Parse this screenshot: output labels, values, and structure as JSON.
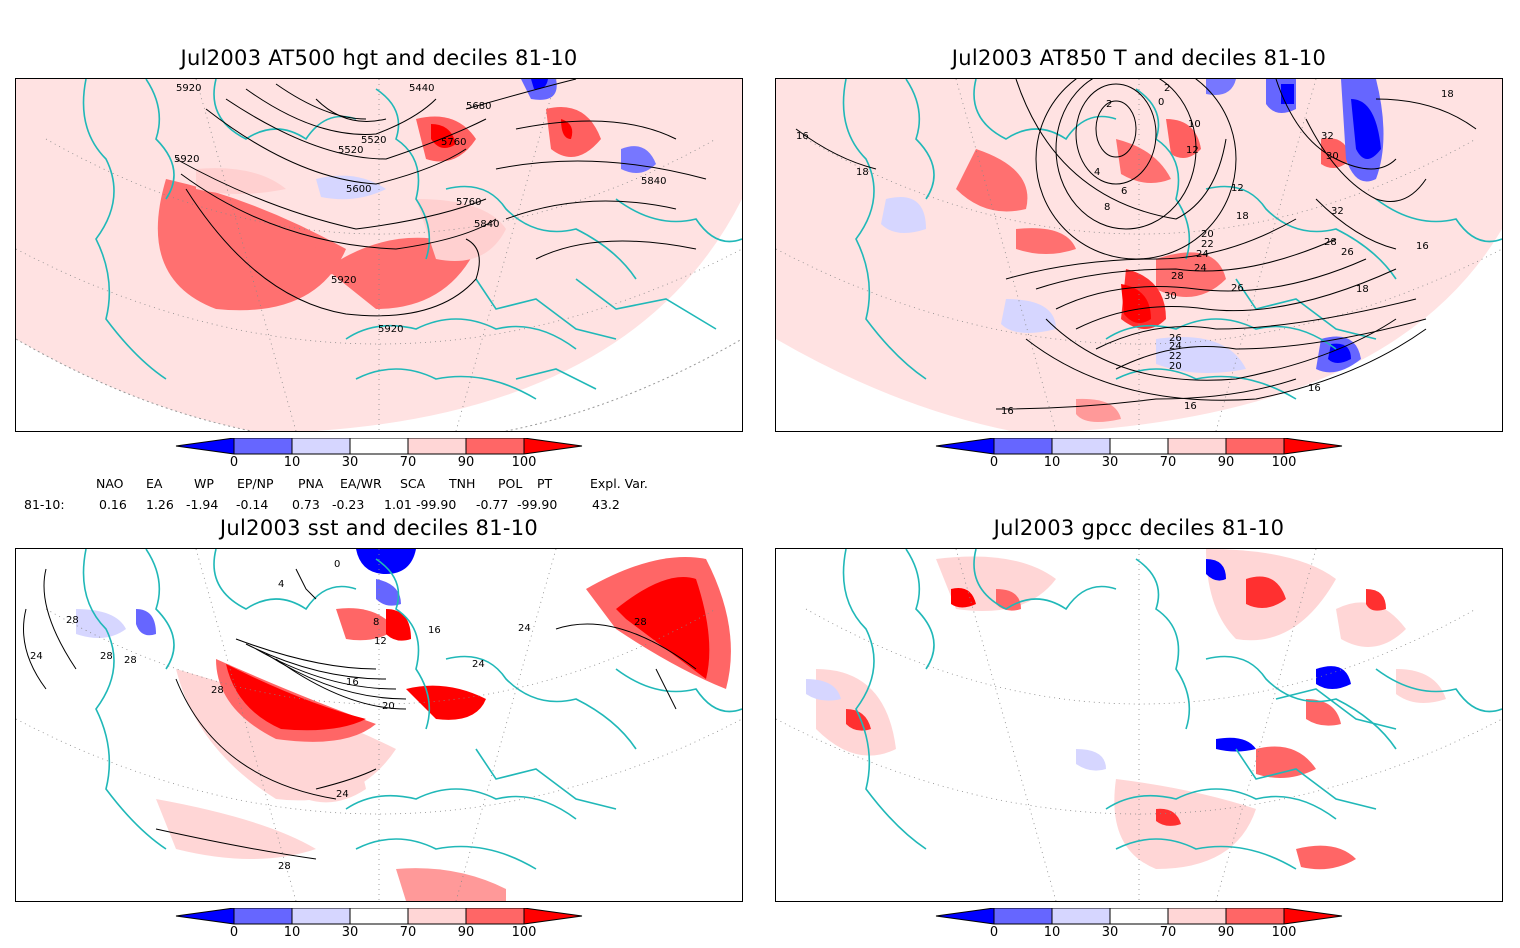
{
  "panels": {
    "p1": {
      "title": "Jul2003 AT500 hgt and deciles 81-10",
      "contours": [
        "5440",
        "5520",
        "5520",
        "5600",
        "5680",
        "5760",
        "5760",
        "5840",
        "5840",
        "5920",
        "5920",
        "5920",
        "5920"
      ]
    },
    "p2": {
      "title": "Jul2003 AT850 T and deciles 81-10",
      "contours": [
        "2",
        "0",
        "2",
        "4",
        "6",
        "8",
        "10",
        "12",
        "12",
        "16",
        "18",
        "18",
        "20",
        "22",
        "24",
        "24",
        "26",
        "26",
        "28",
        "28",
        "30",
        "30",
        "32",
        "32",
        "16",
        "16",
        "18",
        "18",
        "16",
        "16",
        "20",
        "22",
        "24",
        "26"
      ]
    },
    "p3": {
      "title": "Jul2003 sst and deciles 81-10",
      "contours": [
        "0",
        "4",
        "8",
        "12",
        "16",
        "16",
        "20",
        "24",
        "24",
        "24",
        "28",
        "28",
        "28",
        "28",
        "28",
        "28",
        "24"
      ]
    },
    "p4": {
      "title": "Jul2003 gpcc deciles 81-10"
    }
  },
  "colorbar": {
    "labels": [
      "0",
      "10",
      "30",
      "70",
      "90",
      "100"
    ],
    "colors": {
      "dark_blue": "#0000ff",
      "mid_blue": "#6666ff",
      "light_blue": "#d6d6ff",
      "light_red": "#ffd6d6",
      "mid_red": "#ff6666",
      "dark_red": "#ff0000"
    }
  },
  "indices": {
    "headers": [
      "NAO",
      "EA",
      "WP",
      "EP/NP",
      "PNA",
      "EA/WR",
      "SCA",
      "TNH",
      "POL",
      "PT",
      "Expl. Var."
    ],
    "row_label": "81-10:",
    "values": [
      "0.16",
      "1.26",
      "-1.94",
      "-0.14",
      "0.73",
      "-0.23",
      "1.01",
      "-99.90",
      "-0.77",
      "-99.90",
      "43.2"
    ]
  },
  "colors": {
    "coast": "#20b8b8",
    "contour": "#000000"
  }
}
